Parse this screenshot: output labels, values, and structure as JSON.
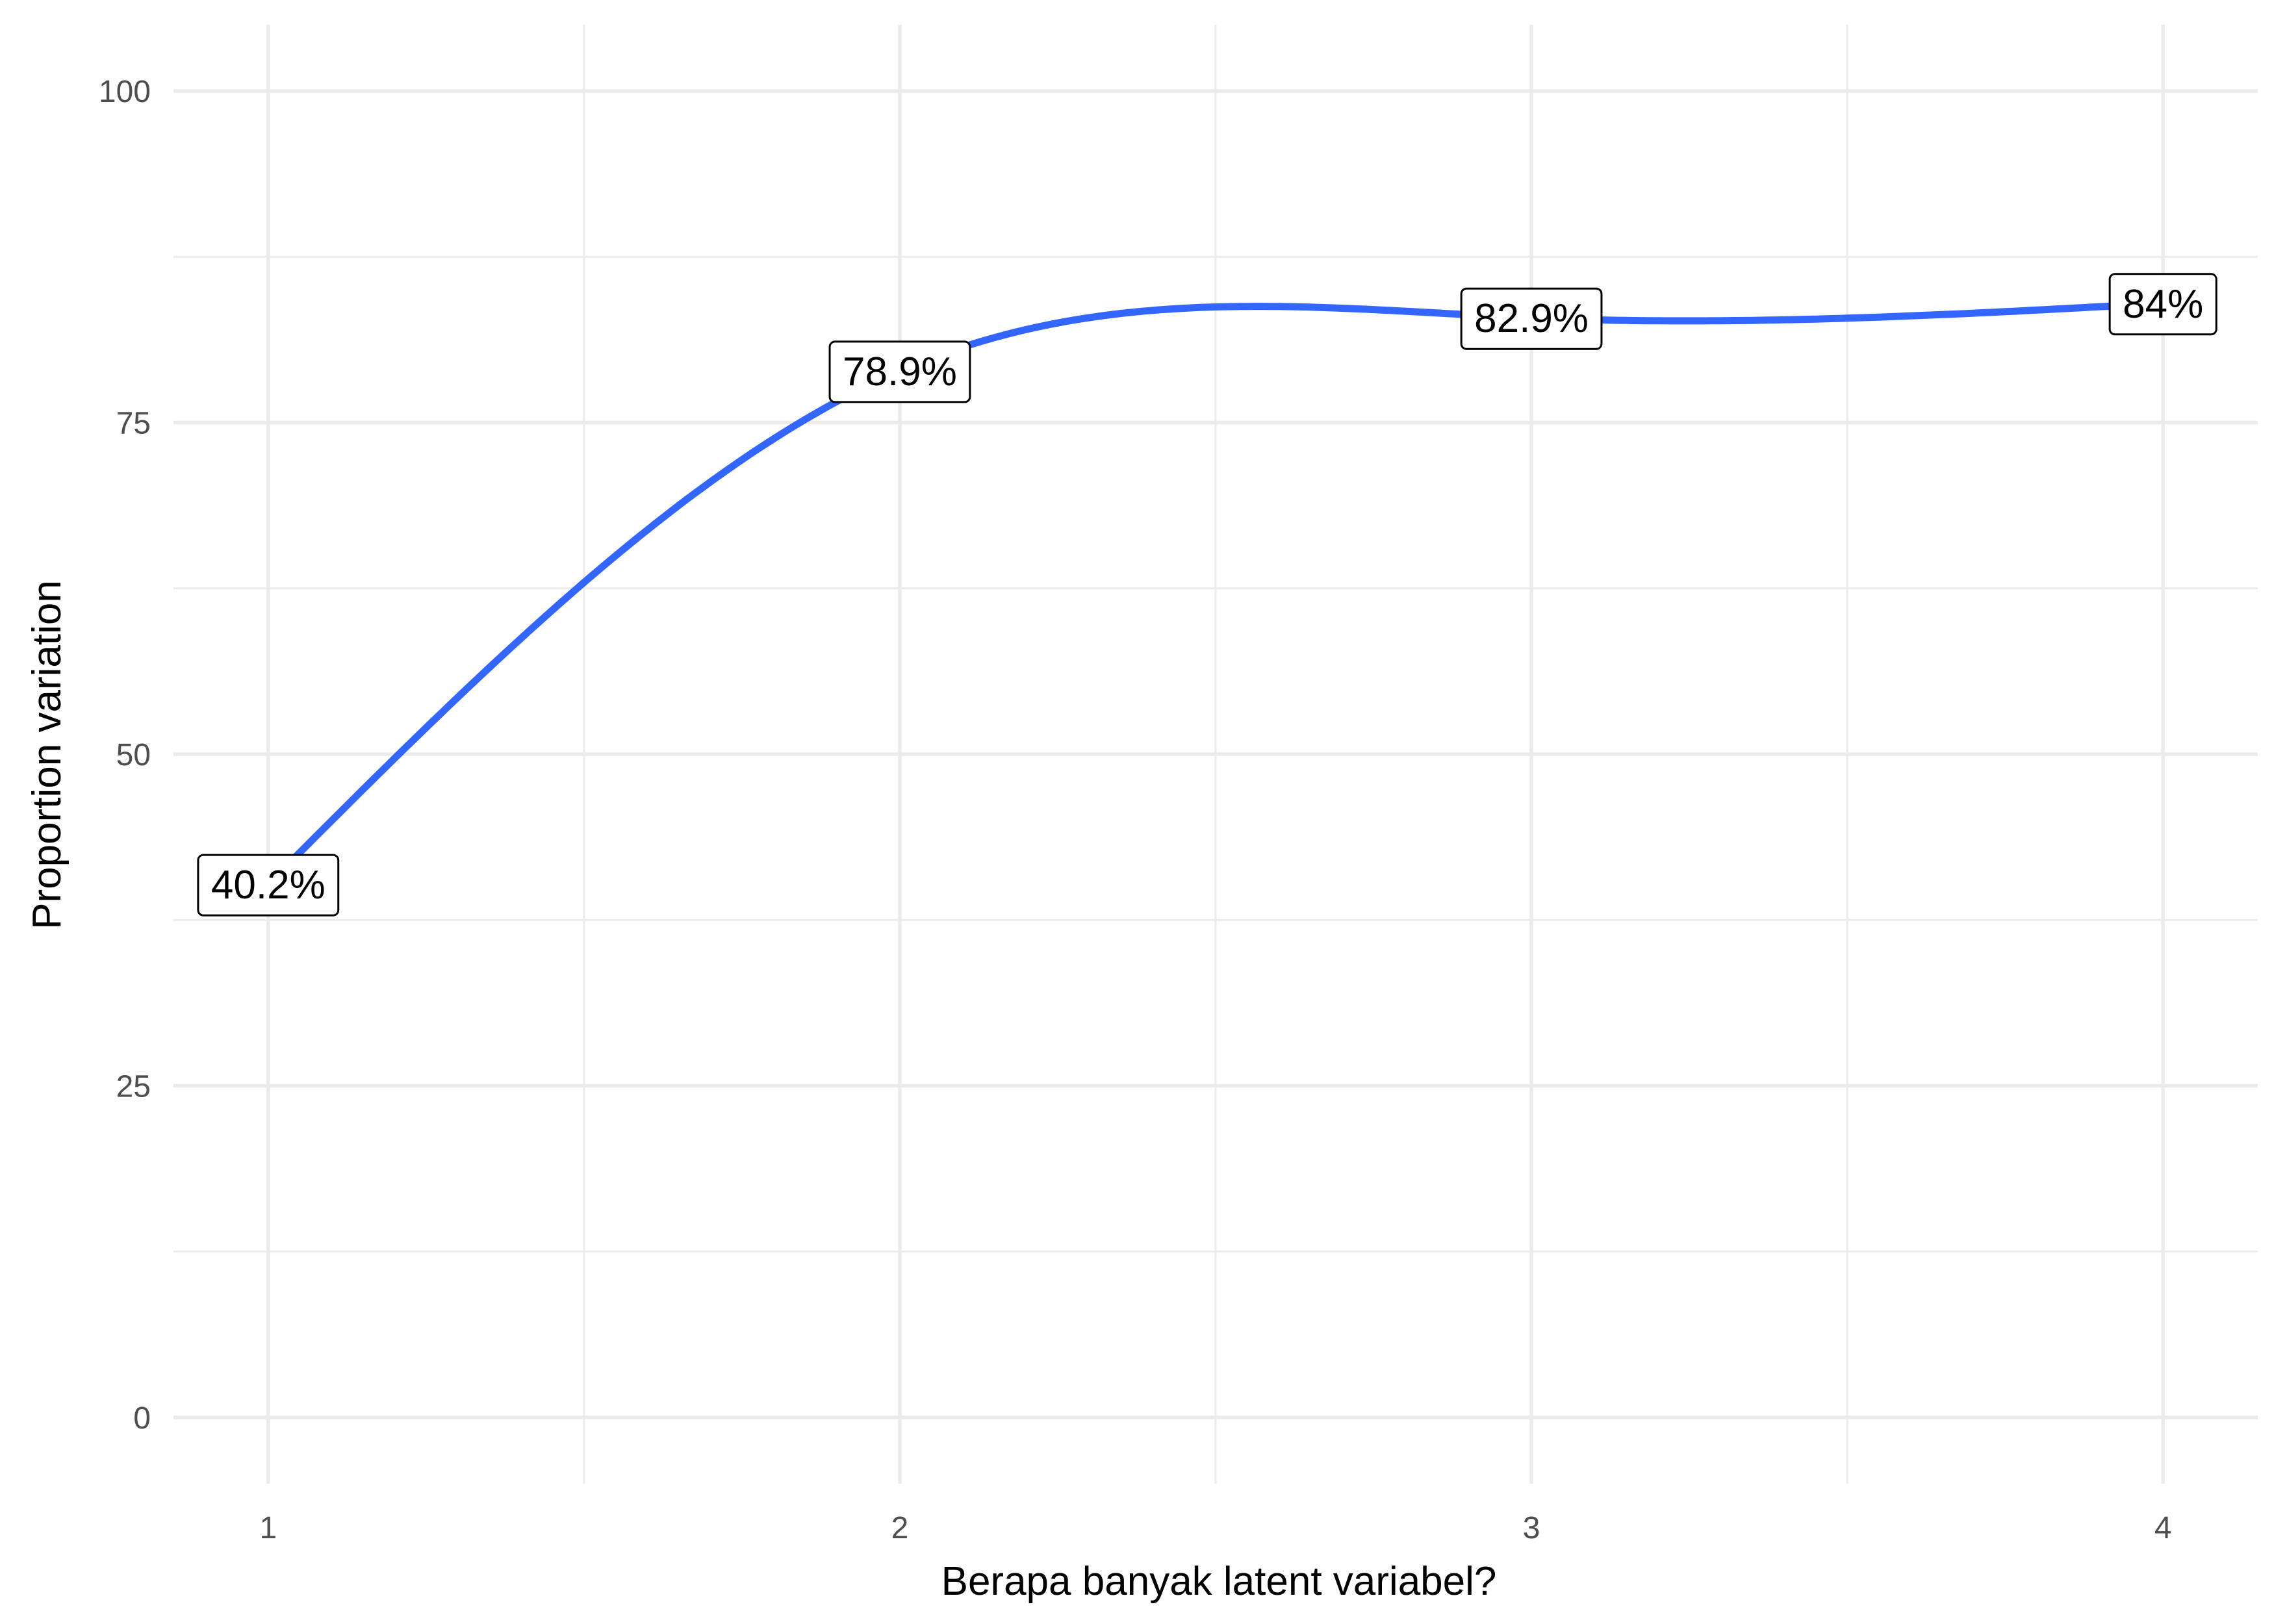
{
  "chart_data": {
    "type": "line",
    "smoothed": true,
    "x": [
      1,
      2,
      3,
      4
    ],
    "series": [
      {
        "values": [
          40.2,
          78.9,
          82.9,
          84.0
        ]
      }
    ],
    "data_labels": [
      "40.2%",
      "78.9%",
      "82.9%",
      "84%"
    ],
    "xlabel": "Berapa banyak latent variabel?",
    "ylabel": "Proportion variation",
    "xlim": [
      0.85,
      4.15
    ],
    "ylim": [
      -5,
      105
    ],
    "xticks": [
      1,
      2,
      3,
      4
    ],
    "xtick_labels": [
      "1",
      "2",
      "3",
      "4"
    ],
    "yticks": [
      0,
      25,
      50,
      75,
      100
    ],
    "ytick_labels": [
      "0",
      "25",
      "50",
      "75",
      "100"
    ],
    "x_minor_gridlines": [
      1.5,
      2.5,
      3.5
    ],
    "y_minor_gridlines": [
      12.5,
      37.5,
      62.5,
      87.5
    ],
    "grid": true,
    "legend": "none",
    "line_color": "#3366FF"
  }
}
